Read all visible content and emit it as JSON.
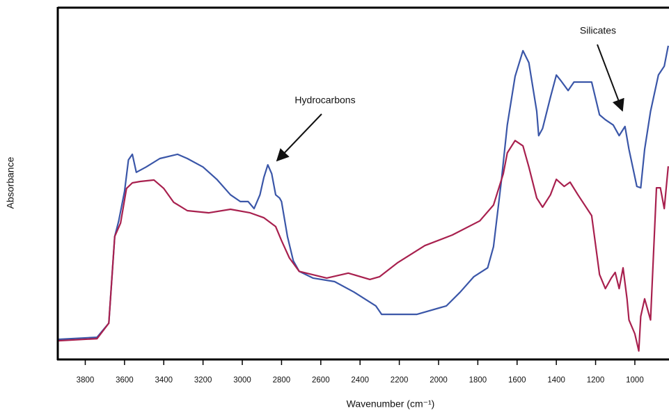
{
  "chart_data": {
    "type": "line",
    "x_label": "Wavenumber (cm⁻¹)",
    "y_label": "Absorbance",
    "xlim": [
      3940,
      826
    ],
    "ylim": [
      0,
      1
    ],
    "xticks": [
      3800,
      3600,
      3400,
      3200,
      3000,
      2800,
      2600,
      2400,
      2200,
      2000,
      1800,
      1600,
      1400,
      1200,
      1000
    ],
    "annotations": [
      {
        "text": "Hydrocarbons"
      },
      {
        "text": "Silicates"
      }
    ],
    "series": [
      {
        "color": "#3a56a8",
        "x": [
          3940,
          3740,
          3680,
          3650,
          3630,
          3600,
          3580,
          3560,
          3540,
          3490,
          3420,
          3330,
          3280,
          3200,
          3130,
          3060,
          3010,
          2970,
          2940,
          2910,
          2890,
          2870,
          2850,
          2830,
          2810,
          2800,
          2770,
          2740,
          2710,
          2640,
          2530,
          2430,
          2320,
          2290,
          2250,
          2110,
          1960,
          1890,
          1820,
          1750,
          1720,
          1680,
          1650,
          1610,
          1570,
          1540,
          1500,
          1490,
          1470,
          1430,
          1400,
          1380,
          1340,
          1310,
          1220,
          1180,
          1150,
          1110,
          1080,
          1050,
          1030,
          990,
          970,
          950,
          920,
          880,
          850,
          830
        ],
        "values": [
          0.057,
          0.063,
          0.103,
          0.349,
          0.392,
          0.477,
          0.566,
          0.582,
          0.531,
          0.546,
          0.57,
          0.582,
          0.57,
          0.546,
          0.511,
          0.467,
          0.448,
          0.448,
          0.428,
          0.467,
          0.517,
          0.552,
          0.527,
          0.467,
          0.458,
          0.448,
          0.349,
          0.28,
          0.25,
          0.231,
          0.221,
          0.191,
          0.152,
          0.128,
          0.128,
          0.128,
          0.152,
          0.191,
          0.235,
          0.26,
          0.32,
          0.507,
          0.665,
          0.803,
          0.876,
          0.842,
          0.704,
          0.635,
          0.655,
          0.744,
          0.807,
          0.793,
          0.763,
          0.787,
          0.787,
          0.694,
          0.68,
          0.665,
          0.635,
          0.661,
          0.596,
          0.491,
          0.487,
          0.596,
          0.704,
          0.807,
          0.832,
          0.89
        ]
      },
      {
        "color": "#a8204e",
        "x": [
          3940,
          3740,
          3680,
          3650,
          3620,
          3590,
          3560,
          3520,
          3450,
          3400,
          3350,
          3280,
          3170,
          3060,
          2960,
          2890,
          2830,
          2800,
          2760,
          2710,
          2570,
          2460,
          2350,
          2300,
          2210,
          2070,
          1930,
          1790,
          1720,
          1670,
          1650,
          1610,
          1570,
          1540,
          1500,
          1470,
          1430,
          1400,
          1360,
          1330,
          1290,
          1220,
          1180,
          1150,
          1120,
          1100,
          1080,
          1060,
          1040,
          1030,
          1000,
          980,
          970,
          950,
          920,
          890,
          870,
          850,
          830
        ],
        "values": [
          0.053,
          0.059,
          0.103,
          0.349,
          0.387,
          0.485,
          0.501,
          0.505,
          0.509,
          0.485,
          0.446,
          0.422,
          0.416,
          0.426,
          0.416,
          0.402,
          0.377,
          0.337,
          0.288,
          0.25,
          0.231,
          0.245,
          0.227,
          0.235,
          0.274,
          0.323,
          0.353,
          0.393,
          0.438,
          0.527,
          0.586,
          0.621,
          0.606,
          0.546,
          0.458,
          0.432,
          0.467,
          0.511,
          0.491,
          0.503,
          0.467,
          0.408,
          0.241,
          0.201,
          0.231,
          0.247,
          0.201,
          0.26,
          0.172,
          0.112,
          0.073,
          0.024,
          0.122,
          0.172,
          0.112,
          0.487,
          0.487,
          0.428,
          0.548
        ]
      }
    ]
  }
}
